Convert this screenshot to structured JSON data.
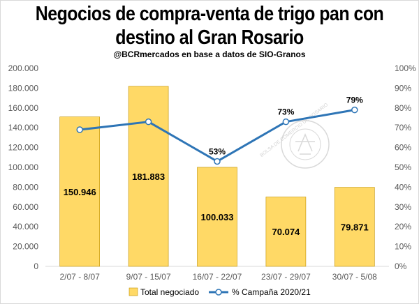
{
  "colors": {
    "bar_fill": "#ffd966",
    "bar_stroke": "#bf9000",
    "line": "#2e75b6",
    "marker_fill": "#ffffff",
    "grid": "#d9d9d9",
    "watermark": "#c9c9c9"
  },
  "watermark_text": "BOLSA DE COMERCIO DE ROSARIO",
  "chart_data": {
    "type": "bar",
    "title": "Negocios de compra-venta de trigo pan con destino al Gran Rosario",
    "title_lines": [
      "Negocios de compra-venta de trigo pan con",
      "destino al Gran Rosario"
    ],
    "subtitle": "@BCRmercados en base a datos de SIO-Granos",
    "categories": [
      "2/07 - 8/07",
      "9/07 - 15/07",
      "16/07 - 22/07",
      "23/07 - 29/07",
      "30/07 - 5/08"
    ],
    "series": [
      {
        "name": "Total negociado",
        "type": "bar",
        "axis": "left",
        "values": [
          150946,
          181883,
          100033,
          70074,
          79871
        ],
        "labels": [
          "150.946",
          "181.883",
          "100.033",
          "70.074",
          "79.871"
        ]
      },
      {
        "name": "% Campaña 2020/21",
        "type": "line",
        "axis": "right",
        "values": [
          69,
          73,
          53,
          73,
          79
        ],
        "labels": [
          "",
          "",
          "53%",
          "73%",
          "79%"
        ]
      }
    ],
    "ylim": [
      0,
      200000
    ],
    "y2lim": [
      0,
      100
    ],
    "yticks": [
      "0",
      "20.000",
      "40.000",
      "60.000",
      "80.000",
      "100.000",
      "120.000",
      "140.000",
      "160.000",
      "180.000",
      "200.000"
    ],
    "y2ticks": [
      "0%",
      "10%",
      "20%",
      "30%",
      "40%",
      "50%",
      "60%",
      "70%",
      "80%",
      "90%",
      "100%"
    ],
    "grid": false,
    "legend_position": "bottom"
  }
}
